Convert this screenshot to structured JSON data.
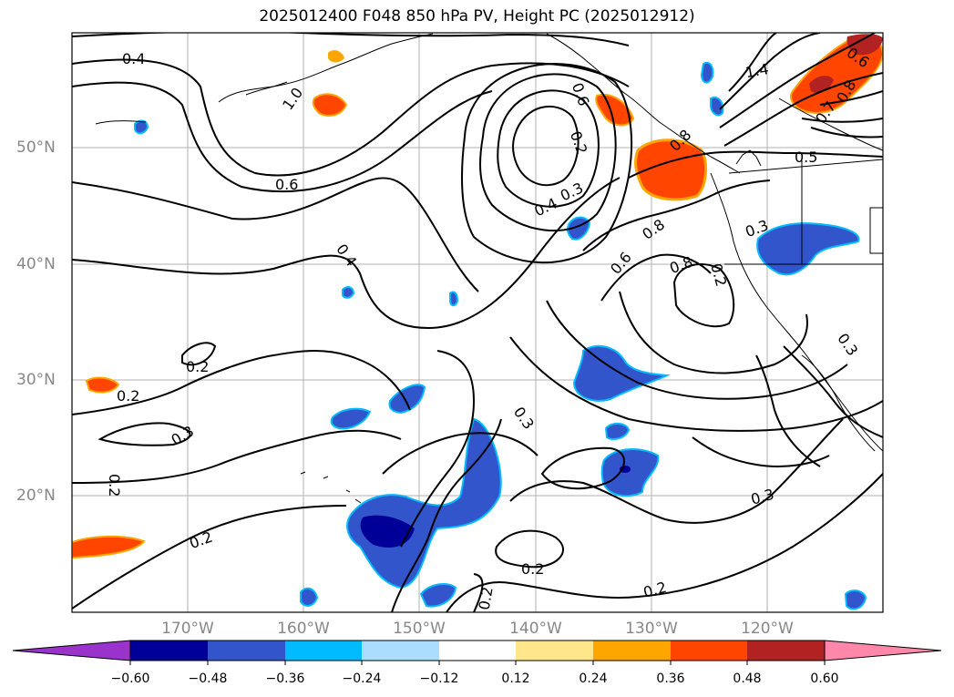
{
  "title": "2025012400 F048 850 hPa PV, Height PC (2025012912)",
  "lat_labels": [
    "50°N",
    "40°N",
    "30°N",
    "20°N"
  ],
  "lon_labels": [
    "170°W",
    "160°W",
    "150°W",
    "140°W",
    "130°W",
    "120°W"
  ],
  "contour_labels": [
    "0.4",
    "1.0",
    "0.6",
    "0.4",
    "0.2",
    "0.2",
    "0.3",
    "0.2",
    "0.2",
    "0.2",
    "0.2",
    "0.3",
    "0.2",
    "0.2",
    "0.3",
    "0.4",
    "0.3",
    "0.8",
    "0.6",
    "0.8",
    "0.3",
    "0.5",
    "1.4",
    "0.6",
    "0.8",
    "0.8",
    "0.7",
    "0.3",
    "0.2",
    "0.6"
  ],
  "colorbar": {
    "ticks": [
      "−0.60",
      "−0.48",
      "−0.36",
      "−0.24",
      "−0.12",
      "0.12",
      "0.24",
      "0.36",
      "0.48",
      "0.60"
    ],
    "colors": [
      "#9933cc",
      "#000099",
      "#3355cc",
      "#00bbff",
      "#aaddff",
      "#ffffff",
      "#ffe68a",
      "#ffa500",
      "#ff4500",
      "#b22222",
      "#ff88aa"
    ]
  },
  "legend_colors": {
    "neg_dark": "#000099",
    "neg_mid": "#3355cc",
    "neg_light": "#00bbff",
    "pos_light": "#ffe68a",
    "pos_mid": "#ffa500",
    "pos_dark": "#ff4500",
    "pos_deep": "#b22222"
  }
}
